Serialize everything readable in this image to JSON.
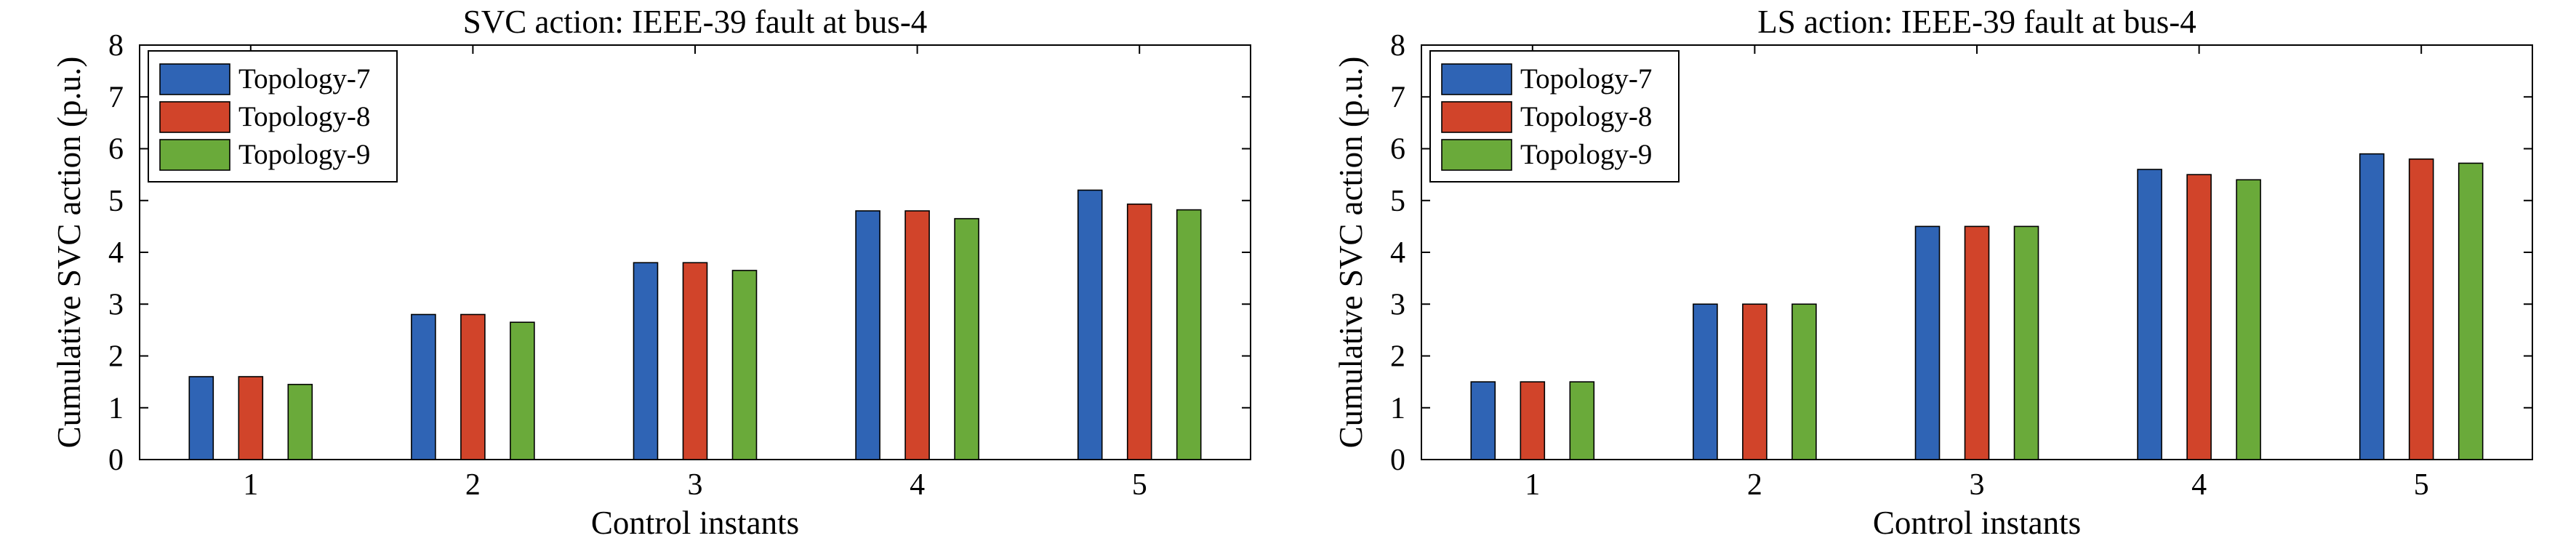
{
  "chart_data": [
    {
      "type": "bar",
      "title": "SVC action: IEEE-39 fault at bus-4",
      "xlabel": "Control instants",
      "ylabel": "Cumulative SVC action (p.u.)",
      "categories": [
        "1",
        "2",
        "3",
        "4",
        "5"
      ],
      "ylim": [
        0,
        8
      ],
      "yticks": [
        "0",
        "1",
        "2",
        "3",
        "4",
        "5",
        "6",
        "7",
        "8"
      ],
      "legend_position": "top-left",
      "grid": false,
      "series": [
        {
          "name": "Topology-7",
          "color": "#2f64b5",
          "values": [
            1.6,
            2.8,
            3.8,
            4.8,
            5.2
          ]
        },
        {
          "name": "Topology-8",
          "color": "#d1442a",
          "values": [
            1.6,
            2.8,
            3.8,
            4.8,
            4.93
          ]
        },
        {
          "name": "Topology-9",
          "color": "#6aaa3a",
          "values": [
            1.45,
            2.65,
            3.65,
            4.65,
            4.82
          ]
        }
      ]
    },
    {
      "type": "bar",
      "title": "LS action: IEEE-39 fault at bus-4",
      "xlabel": "Control instants",
      "ylabel": "Cumulative SVC action (p.u.)",
      "categories": [
        "1",
        "2",
        "3",
        "4",
        "5"
      ],
      "ylim": [
        0,
        8
      ],
      "yticks": [
        "0",
        "1",
        "2",
        "3",
        "4",
        "5",
        "6",
        "7",
        "8"
      ],
      "legend_position": "top-left",
      "grid": false,
      "series": [
        {
          "name": "Topology-7",
          "color": "#2f64b5",
          "values": [
            1.5,
            3.0,
            4.5,
            5.6,
            5.9
          ]
        },
        {
          "name": "Topology-8",
          "color": "#d1442a",
          "values": [
            1.5,
            3.0,
            4.5,
            5.5,
            5.8
          ]
        },
        {
          "name": "Topology-9",
          "color": "#6aaa3a",
          "values": [
            1.5,
            3.0,
            4.5,
            5.4,
            5.72
          ]
        }
      ]
    }
  ]
}
